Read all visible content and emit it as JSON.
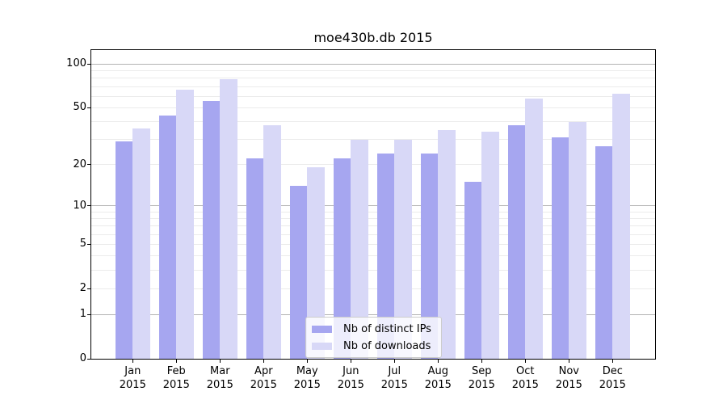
{
  "chart_data": {
    "type": "bar",
    "title": "moe430b.db 2015",
    "scale": "log1p",
    "categories": [
      "Jan",
      "Feb",
      "Mar",
      "Apr",
      "May",
      "Jun",
      "Jul",
      "Aug",
      "Sep",
      "Oct",
      "Nov",
      "Dec"
    ],
    "x_tick_year": "2015",
    "series": [
      {
        "name": "Nb of distinct IPs",
        "color": "#a6a6f0",
        "values": [
          29,
          44,
          56,
          22,
          14,
          22,
          24,
          24,
          15,
          38,
          31,
          27
        ]
      },
      {
        "name": "Nb of downloads",
        "color": "#d8d8f7",
        "values": [
          36,
          67,
          79,
          38,
          19,
          30,
          30,
          35,
          34,
          58,
          40,
          63
        ]
      }
    ],
    "xlabel": "",
    "ylabel": "",
    "y_tick_labels": [
      100,
      50,
      20,
      10,
      5,
      2,
      1,
      0
    ],
    "major_gridlines": [
      1,
      10,
      100
    ],
    "minor_gridlines": [
      2,
      3,
      4,
      5,
      6,
      7,
      8,
      9,
      20,
      30,
      40,
      50,
      60,
      70,
      80,
      90
    ],
    "ylim": [
      0,
      125
    ],
    "grid": "on",
    "legend_position": "lower-center"
  },
  "colors": {
    "grid_major": "#b3b3b3",
    "grid_minor": "#ebebeb",
    "axis": "#000000",
    "legend_border": "#cccccc"
  }
}
